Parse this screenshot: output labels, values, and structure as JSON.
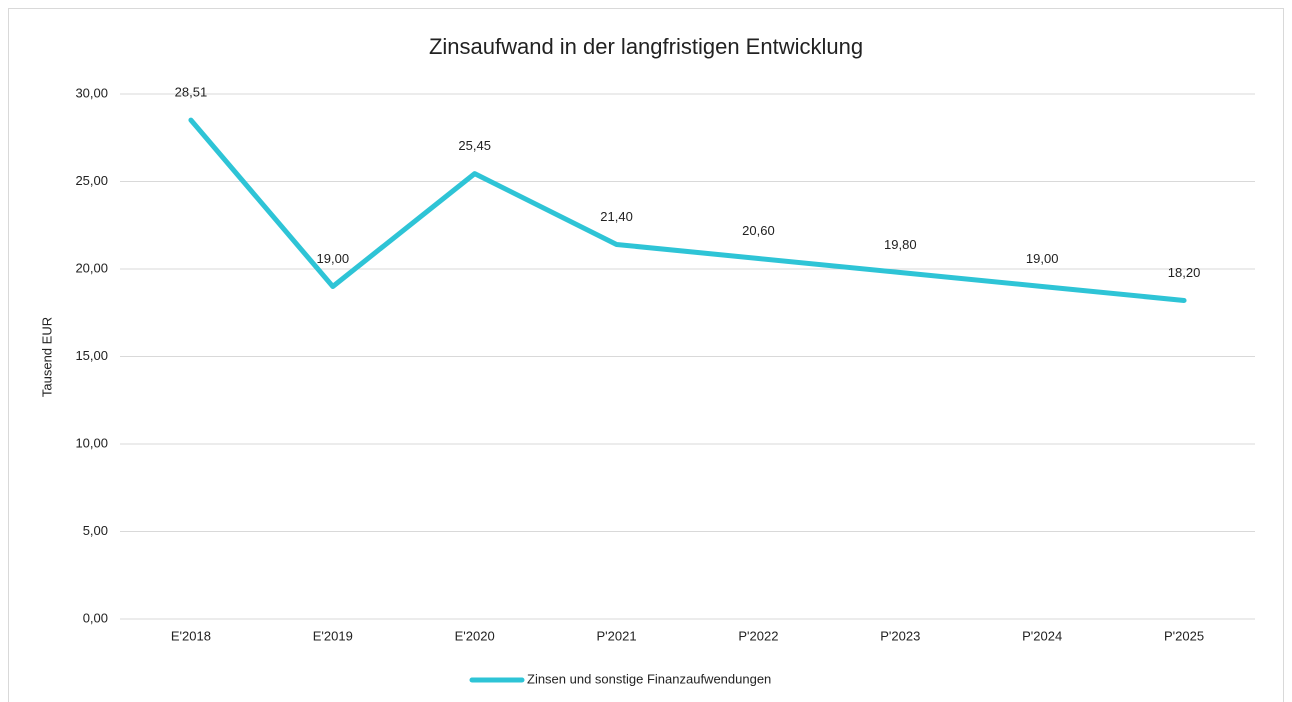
{
  "chart_data": {
    "type": "line",
    "title": "Zinsaufwand in der langfristigen Entwicklung",
    "ylabel": "Tausend EUR",
    "categories": [
      "E'2018",
      "E'2019",
      "E'2020",
      "P'2021",
      "P'2022",
      "P'2023",
      "P'2024",
      "P'2025"
    ],
    "series": [
      {
        "name": "Zinsen und sonstige Finanzaufwendungen",
        "color": "#2ec4d6",
        "values": [
          28.51,
          19.0,
          25.45,
          21.4,
          20.6,
          19.8,
          19.0,
          18.2
        ],
        "value_labels": [
          "28,51",
          "19,00",
          "25,45",
          "21,40",
          "20,60",
          "19,80",
          "19,00",
          "18,20"
        ]
      }
    ],
    "ylim": [
      0,
      30
    ],
    "yticks": [
      {
        "value": 0,
        "label": "0,00"
      },
      {
        "value": 5,
        "label": "5,00"
      },
      {
        "value": 10,
        "label": "10,00"
      },
      {
        "value": 15,
        "label": "15,00"
      },
      {
        "value": 20,
        "label": "20,00"
      },
      {
        "value": 25,
        "label": "25,00"
      },
      {
        "value": 30,
        "label": "30,00"
      }
    ],
    "grid": true,
    "legend": "bottom"
  }
}
